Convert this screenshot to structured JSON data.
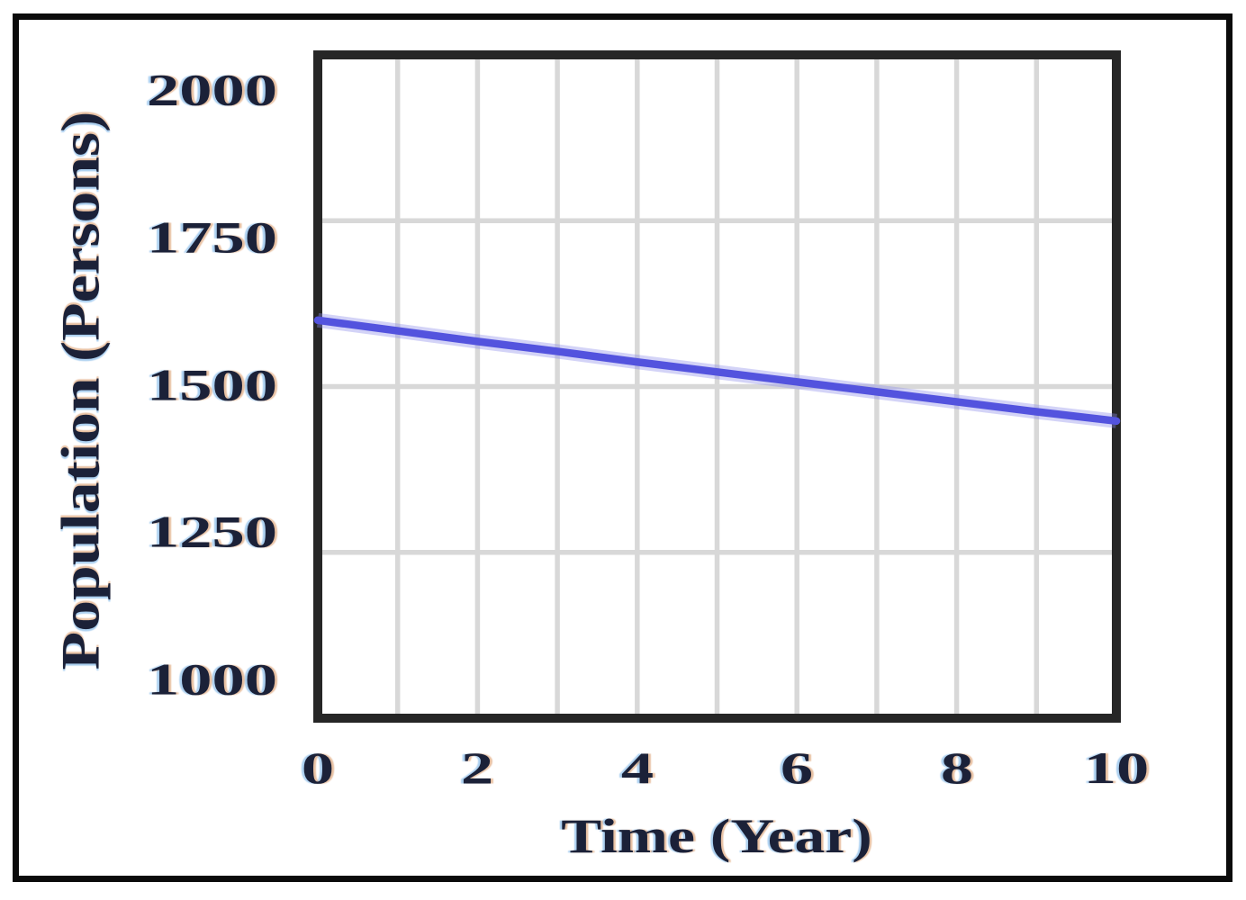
{
  "colors": {
    "line": "#5353de",
    "line_halo": "#8c8ceb",
    "gridline": "#d8d8d8",
    "plot_frame": "#262626",
    "outer_border": "#0b0b0b",
    "text": "#1b2138",
    "background": "#ffffff"
  },
  "chart_data": {
    "type": "line",
    "title": "",
    "xlabel": "Time (Year)",
    "ylabel": "Population (Persons)",
    "xlim": [
      0,
      10
    ],
    "ylim": [
      1000,
      2000
    ],
    "xticks": [
      0,
      2,
      4,
      6,
      8,
      10
    ],
    "yticks": [
      1000,
      1250,
      1500,
      1750,
      2000
    ],
    "x_gridline_step": 1,
    "grid": true,
    "legend": "none",
    "series": [
      {
        "name": "Population",
        "color": "#5353de",
        "x": [
          0,
          1,
          2,
          3,
          4,
          5,
          6,
          7,
          8,
          9,
          10
        ],
        "values": [
          1600,
          1584,
          1568,
          1553,
          1537,
          1522,
          1507,
          1492,
          1477,
          1462,
          1448
        ]
      }
    ]
  }
}
